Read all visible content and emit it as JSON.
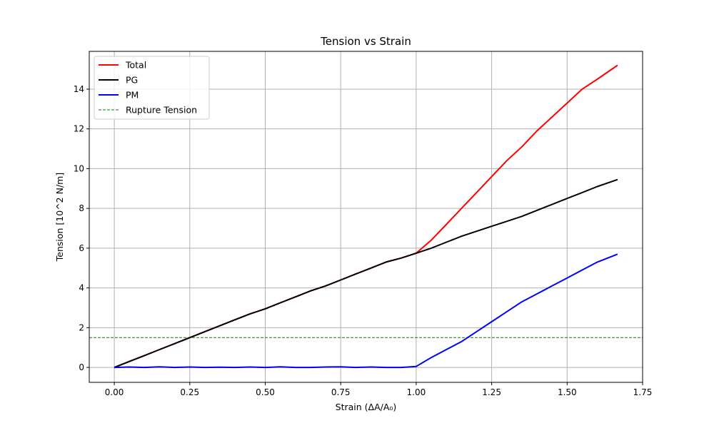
{
  "chart_data": {
    "type": "line",
    "title": "Tension vs Strain",
    "xlabel": "Strain (ΔA/A₀)",
    "ylabel": "Tension [10^2 N/m]",
    "xlim": [
      -0.083,
      1.75
    ],
    "ylim": [
      -0.75,
      15.9
    ],
    "xticks": [
      0.0,
      0.25,
      0.5,
      0.75,
      1.0,
      1.25,
      1.5,
      1.75
    ],
    "xtick_labels": [
      "0.00",
      "0.25",
      "0.50",
      "0.75",
      "1.00",
      "1.25",
      "1.50",
      "1.75"
    ],
    "yticks": [
      0,
      2,
      4,
      6,
      8,
      10,
      12,
      14
    ],
    "ytick_labels": [
      "0",
      "2",
      "4",
      "6",
      "8",
      "10",
      "12",
      "14"
    ],
    "grid": true,
    "legend_position": "upper-left",
    "series": [
      {
        "name": "Total",
        "color": "#ff0000",
        "style": "solid",
        "x": [
          0.0,
          0.05,
          0.1,
          0.15,
          0.2,
          0.25,
          0.3,
          0.35,
          0.4,
          0.45,
          0.5,
          0.55,
          0.6,
          0.65,
          0.7,
          0.75,
          0.8,
          0.85,
          0.9,
          0.95,
          1.0,
          1.05,
          1.1,
          1.15,
          1.2,
          1.25,
          1.3,
          1.35,
          1.4,
          1.45,
          1.5,
          1.55,
          1.6,
          1.667
        ],
        "y": [
          0.0,
          0.3,
          0.6,
          0.9,
          1.2,
          1.5,
          1.8,
          2.1,
          2.4,
          2.7,
          2.95,
          3.25,
          3.55,
          3.85,
          4.1,
          4.4,
          4.7,
          5.0,
          5.3,
          5.5,
          5.75,
          6.4,
          7.2,
          8.0,
          8.8,
          9.6,
          10.4,
          11.1,
          11.9,
          12.6,
          13.3,
          14.0,
          14.5,
          15.2
        ]
      },
      {
        "name": "PG",
        "color": "#000000",
        "style": "solid",
        "x": [
          0.0,
          0.05,
          0.1,
          0.15,
          0.2,
          0.25,
          0.3,
          0.35,
          0.4,
          0.45,
          0.5,
          0.55,
          0.6,
          0.65,
          0.7,
          0.75,
          0.8,
          0.85,
          0.9,
          0.95,
          1.0,
          1.05,
          1.1,
          1.15,
          1.2,
          1.25,
          1.3,
          1.35,
          1.4,
          1.45,
          1.5,
          1.55,
          1.6,
          1.667
        ],
        "y": [
          0.0,
          0.3,
          0.6,
          0.9,
          1.2,
          1.5,
          1.8,
          2.1,
          2.4,
          2.7,
          2.95,
          3.25,
          3.55,
          3.85,
          4.1,
          4.4,
          4.7,
          5.0,
          5.3,
          5.5,
          5.75,
          6.0,
          6.3,
          6.6,
          6.85,
          7.1,
          7.35,
          7.6,
          7.9,
          8.2,
          8.5,
          8.8,
          9.1,
          9.45
        ]
      },
      {
        "name": "PM",
        "color": "#0000ff",
        "style": "solid",
        "x": [
          0.0,
          0.05,
          0.1,
          0.15,
          0.2,
          0.25,
          0.3,
          0.35,
          0.4,
          0.45,
          0.5,
          0.55,
          0.6,
          0.65,
          0.7,
          0.75,
          0.8,
          0.85,
          0.9,
          0.95,
          1.0,
          1.05,
          1.1,
          1.15,
          1.2,
          1.25,
          1.3,
          1.35,
          1.4,
          1.45,
          1.5,
          1.55,
          1.6,
          1.667
        ],
        "y": [
          0.0,
          0.02,
          0.0,
          0.03,
          0.0,
          0.02,
          0.0,
          0.01,
          0.0,
          0.02,
          0.0,
          0.03,
          0.0,
          0.0,
          0.02,
          0.03,
          0.0,
          0.02,
          0.0,
          0.0,
          0.05,
          0.5,
          0.9,
          1.3,
          1.8,
          2.3,
          2.8,
          3.3,
          3.7,
          4.1,
          4.5,
          4.9,
          5.3,
          5.7
        ]
      },
      {
        "name": "Rupture Tension",
        "color": "#008000",
        "style": "dashed",
        "x": [
          -0.083,
          1.75
        ],
        "y": [
          1.5,
          1.5
        ]
      }
    ]
  }
}
